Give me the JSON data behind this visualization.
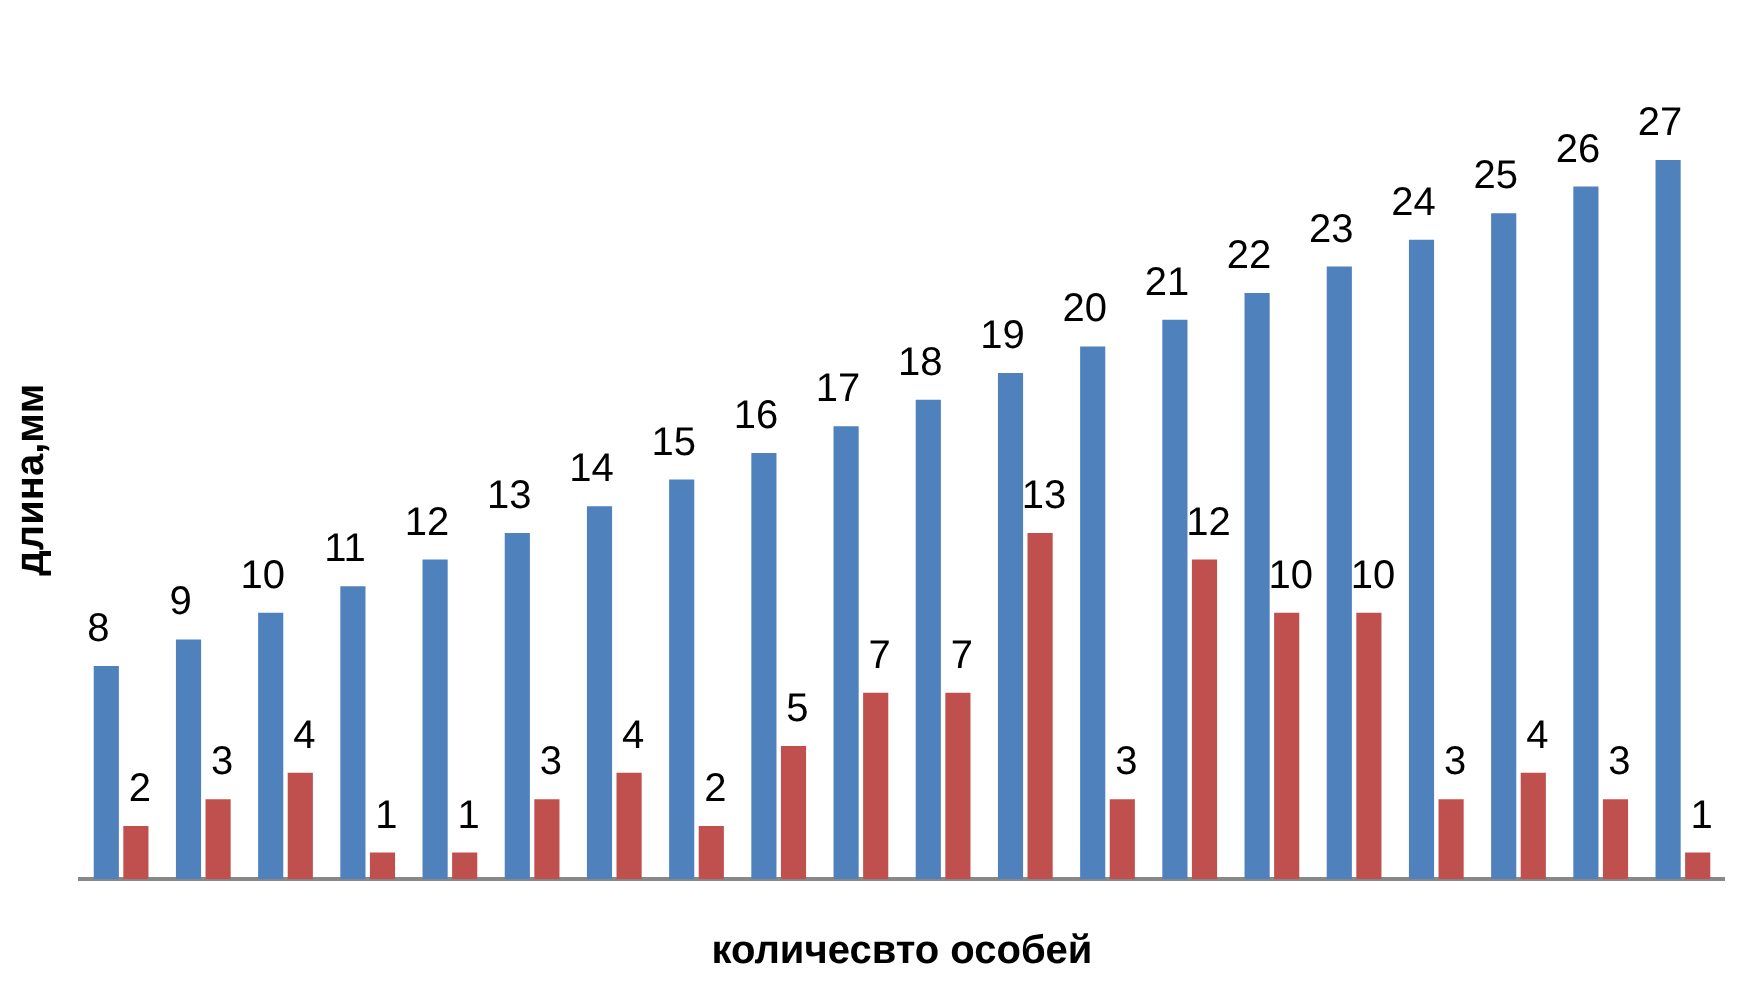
{
  "chart_data": {
    "type": "bar",
    "xlabel": "количесвто особей",
    "ylabel": "длина,мм",
    "categories": [
      null,
      null,
      null,
      null,
      null,
      null,
      null,
      null,
      null,
      null,
      null,
      null,
      null,
      null,
      null,
      null,
      null,
      null,
      null,
      null
    ],
    "series": [
      {
        "color": "#4f81bd",
        "values": [
          8,
          9,
          10,
          11,
          12,
          13,
          14,
          15,
          16,
          17,
          18,
          19,
          20,
          21,
          22,
          23,
          24,
          25,
          26,
          27
        ]
      },
      {
        "color": "#c0504d",
        "values": [
          2,
          3,
          4,
          1,
          1,
          3,
          4,
          2,
          5,
          7,
          7,
          13,
          3,
          12,
          10,
          10,
          3,
          4,
          3,
          1
        ]
      }
    ],
    "data_labels": true,
    "grid": false,
    "legend": false
  }
}
